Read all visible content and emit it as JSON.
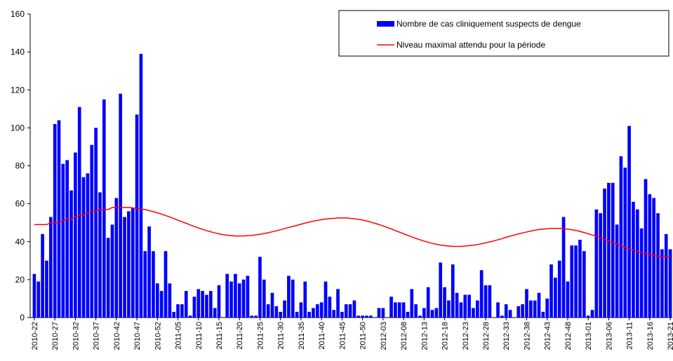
{
  "chart_data": {
    "type": "bar",
    "categories": [
      "2010-22",
      null,
      null,
      null,
      null,
      "2010-27",
      null,
      null,
      null,
      null,
      "2010-32",
      null,
      null,
      null,
      null,
      "2010-37",
      null,
      null,
      null,
      null,
      "2010-42",
      null,
      null,
      null,
      null,
      "2010-47",
      null,
      null,
      null,
      null,
      "2010-52",
      null,
      null,
      null,
      null,
      "2011-05",
      null,
      null,
      null,
      null,
      "2011-10",
      null,
      null,
      null,
      null,
      "2011-15",
      null,
      null,
      null,
      null,
      "2011-20",
      null,
      null,
      null,
      null,
      "2011-25",
      null,
      null,
      null,
      null,
      "2011-30",
      null,
      null,
      null,
      null,
      "2011-35",
      null,
      null,
      null,
      null,
      "2011-40",
      null,
      null,
      null,
      null,
      "2011-45",
      null,
      null,
      null,
      null,
      "2011-50",
      null,
      null,
      null,
      null,
      "2012-03",
      null,
      null,
      null,
      null,
      "2012-08",
      null,
      null,
      null,
      null,
      "2012-13",
      null,
      null,
      null,
      null,
      "2012-18",
      null,
      null,
      null,
      null,
      "2012-23",
      null,
      null,
      null,
      null,
      "2012-28",
      null,
      null,
      null,
      null,
      "2012-33",
      null,
      null,
      null,
      null,
      "2012-38",
      null,
      null,
      null,
      null,
      "2012-43",
      null,
      null,
      null,
      null,
      "2012-48",
      null,
      null,
      null,
      null,
      "2013-01",
      null,
      null,
      null,
      null,
      "2013-06",
      null,
      null,
      null,
      null,
      "2013-11",
      null,
      null,
      null,
      null,
      "2013-16",
      null,
      null,
      null,
      null,
      "2013-21"
    ],
    "series": [
      {
        "name": "Nombre de cas cliniquement suspects de dengue",
        "type": "bar",
        "color": "#0000ff",
        "values": [
          23,
          19,
          44,
          30,
          53,
          102,
          104,
          81,
          83,
          67,
          87,
          111,
          74,
          76,
          91,
          100,
          66,
          115,
          42,
          49,
          63,
          118,
          53,
          56,
          58,
          107,
          139,
          35,
          48,
          35,
          18,
          14,
          35,
          18,
          3,
          7,
          7,
          14,
          1,
          11,
          15,
          14,
          12,
          14,
          5,
          17,
          0,
          23,
          19,
          23,
          18,
          20,
          22,
          1,
          1,
          32,
          20,
          7,
          13,
          6,
          3,
          9,
          22,
          20,
          3,
          8,
          19,
          3,
          5,
          7,
          8,
          19,
          11,
          4,
          15,
          3,
          7,
          7,
          9,
          1,
          1,
          1,
          1,
          0,
          5,
          5,
          0,
          11,
          8,
          8,
          8,
          3,
          15,
          7,
          1,
          5,
          16,
          4,
          5,
          29,
          16,
          9,
          28,
          13,
          8,
          12,
          12,
          5,
          9,
          25,
          17,
          17,
          0,
          8,
          1,
          7,
          4,
          0,
          6,
          7,
          15,
          9,
          9,
          13,
          3,
          10,
          28,
          21,
          30,
          53,
          19,
          38,
          38,
          41,
          35,
          1,
          4,
          57,
          55,
          68,
          71,
          71,
          49,
          85,
          79,
          101,
          61,
          57,
          47,
          73,
          65,
          63,
          55,
          36,
          44,
          36
        ]
      },
      {
        "name": "Niveau maximal attendu pour la période",
        "type": "line",
        "color": "#ff0000",
        "values": [
          49,
          49,
          49,
          49,
          50,
          50,
          50,
          51,
          52,
          52,
          53,
          54,
          54,
          55,
          56,
          56,
          57,
          57,
          57,
          58,
          58,
          58,
          58,
          58,
          57.8,
          57.6,
          57.3,
          56.9,
          56.4,
          55.8,
          55.2,
          54.5,
          53.8,
          53,
          52.2,
          51.3,
          50.5,
          49.7,
          48.8,
          48,
          47.2,
          46.5,
          45.8,
          45.2,
          44.6,
          44.1,
          43.7,
          43.4,
          43.2,
          43,
          43,
          43,
          43.2,
          43.3,
          43.6,
          43.9,
          44.3,
          44.7,
          45.2,
          45.7,
          46.3,
          46.9,
          47.5,
          48,
          48.6,
          49.2,
          49.8,
          50.3,
          50.8,
          51.2,
          51.6,
          51.9,
          52.2,
          52.3,
          52.5,
          52.5,
          52.5,
          52.3,
          52.1,
          51.8,
          51.4,
          50.9,
          50.3,
          49.7,
          49,
          48.3,
          47.5,
          46.7,
          45.8,
          45,
          44.2,
          43.3,
          42.5,
          41.7,
          41,
          40.3,
          39.7,
          39.1,
          38.6,
          38.2,
          37.9,
          37.7,
          37.5,
          37.5,
          37.5,
          37.7,
          37.9,
          38.1,
          38.5,
          38.9,
          39.4,
          39.9,
          40.4,
          41,
          41.6,
          42.3,
          42.9,
          43.5,
          44.1,
          44.6,
          45.1,
          45.6,
          46,
          46.4,
          46.6,
          46.8,
          47,
          47,
          47,
          46.8,
          46.6,
          46.3,
          45.9,
          45.4,
          44.8,
          44.2,
          43.5,
          42.8,
          42,
          41.2,
          40.3,
          39.5,
          38.7,
          37.8,
          37,
          36.2,
          35.5,
          34.8,
          34.2,
          33.6,
          33.1,
          32.7,
          32.4,
          32.2,
          32,
          32
        ]
      }
    ],
    "ylim": [
      0,
      160
    ],
    "yticks": [
      0,
      20,
      40,
      60,
      80,
      100,
      120,
      140,
      160
    ],
    "legend": "top-right"
  }
}
